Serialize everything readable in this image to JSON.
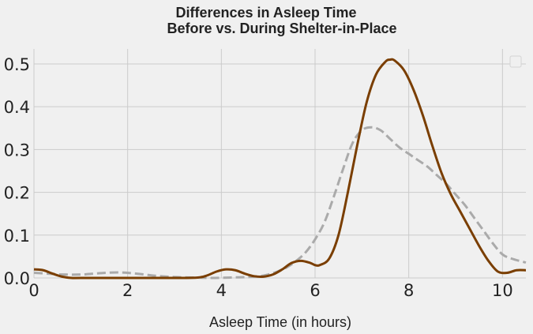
{
  "chart_data": {
    "type": "line",
    "title": [
      "Differences in Asleep Time",
      "Before vs. During Shelter-in-Place"
    ],
    "xlabel": "Asleep Time (in hours)",
    "ylabel": "",
    "xlim": [
      0,
      10.5
    ],
    "ylim": [
      0,
      0.535
    ],
    "xticks": [
      0,
      2,
      4,
      6,
      8,
      10
    ],
    "yticks": [
      0.0,
      0.1,
      0.2,
      0.3,
      0.4,
      0.5
    ],
    "xtick_labels": [
      "0",
      "2",
      "4",
      "6",
      "8",
      "10"
    ],
    "ytick_labels": [
      "0.0",
      "0.1",
      "0.2",
      "0.3",
      "0.4",
      "0.5"
    ],
    "grid": true,
    "legend": {
      "placement": "top-right",
      "entries": []
    },
    "series": [
      {
        "style": "dashed",
        "color": "#aaaaaa",
        "x": [
          0,
          0.3,
          0.6,
          1.0,
          1.4,
          1.8,
          2.2,
          2.6,
          3.0,
          3.4,
          3.8,
          4.2,
          4.5,
          4.8,
          5.0,
          5.2,
          5.4,
          5.6,
          5.8,
          6.0,
          6.2,
          6.4,
          6.6,
          6.8,
          7.0,
          7.2,
          7.4,
          7.6,
          7.8,
          8.0,
          8.2,
          8.4,
          8.6,
          8.8,
          9.0,
          9.2,
          9.4,
          9.6,
          9.8,
          10.0,
          10.2,
          10.5
        ],
        "y": [
          0.012,
          0.01,
          0.008,
          0.008,
          0.011,
          0.013,
          0.01,
          0.005,
          0.002,
          0.001,
          0.0,
          0.001,
          0.002,
          0.004,
          0.008,
          0.015,
          0.025,
          0.04,
          0.06,
          0.09,
          0.13,
          0.19,
          0.255,
          0.315,
          0.345,
          0.352,
          0.345,
          0.325,
          0.305,
          0.29,
          0.275,
          0.26,
          0.24,
          0.22,
          0.195,
          0.17,
          0.14,
          0.11,
          0.08,
          0.055,
          0.045,
          0.036
        ]
      },
      {
        "style": "solid",
        "color": "#7a3e00",
        "x": [
          0,
          0.2,
          0.4,
          0.6,
          0.8,
          1.0,
          2.0,
          3.0,
          3.5,
          3.7,
          3.9,
          4.1,
          4.3,
          4.5,
          4.7,
          4.9,
          5.1,
          5.3,
          5.5,
          5.7,
          5.9,
          6.0,
          6.1,
          6.3,
          6.5,
          6.7,
          6.9,
          7.1,
          7.3,
          7.5,
          7.6,
          7.7,
          7.9,
          8.1,
          8.3,
          8.5,
          8.7,
          8.9,
          9.1,
          9.3,
          9.5,
          9.7,
          9.9,
          10.1,
          10.3,
          10.5
        ],
        "y": [
          0.02,
          0.018,
          0.01,
          0.003,
          0.0,
          0.0,
          0.0,
          0.0,
          0.001,
          0.006,
          0.015,
          0.02,
          0.018,
          0.01,
          0.004,
          0.003,
          0.008,
          0.02,
          0.035,
          0.04,
          0.035,
          0.03,
          0.03,
          0.045,
          0.1,
          0.2,
          0.31,
          0.41,
          0.475,
          0.505,
          0.51,
          0.508,
          0.485,
          0.44,
          0.38,
          0.31,
          0.245,
          0.195,
          0.155,
          0.115,
          0.075,
          0.04,
          0.015,
          0.012,
          0.018,
          0.018
        ]
      }
    ]
  }
}
